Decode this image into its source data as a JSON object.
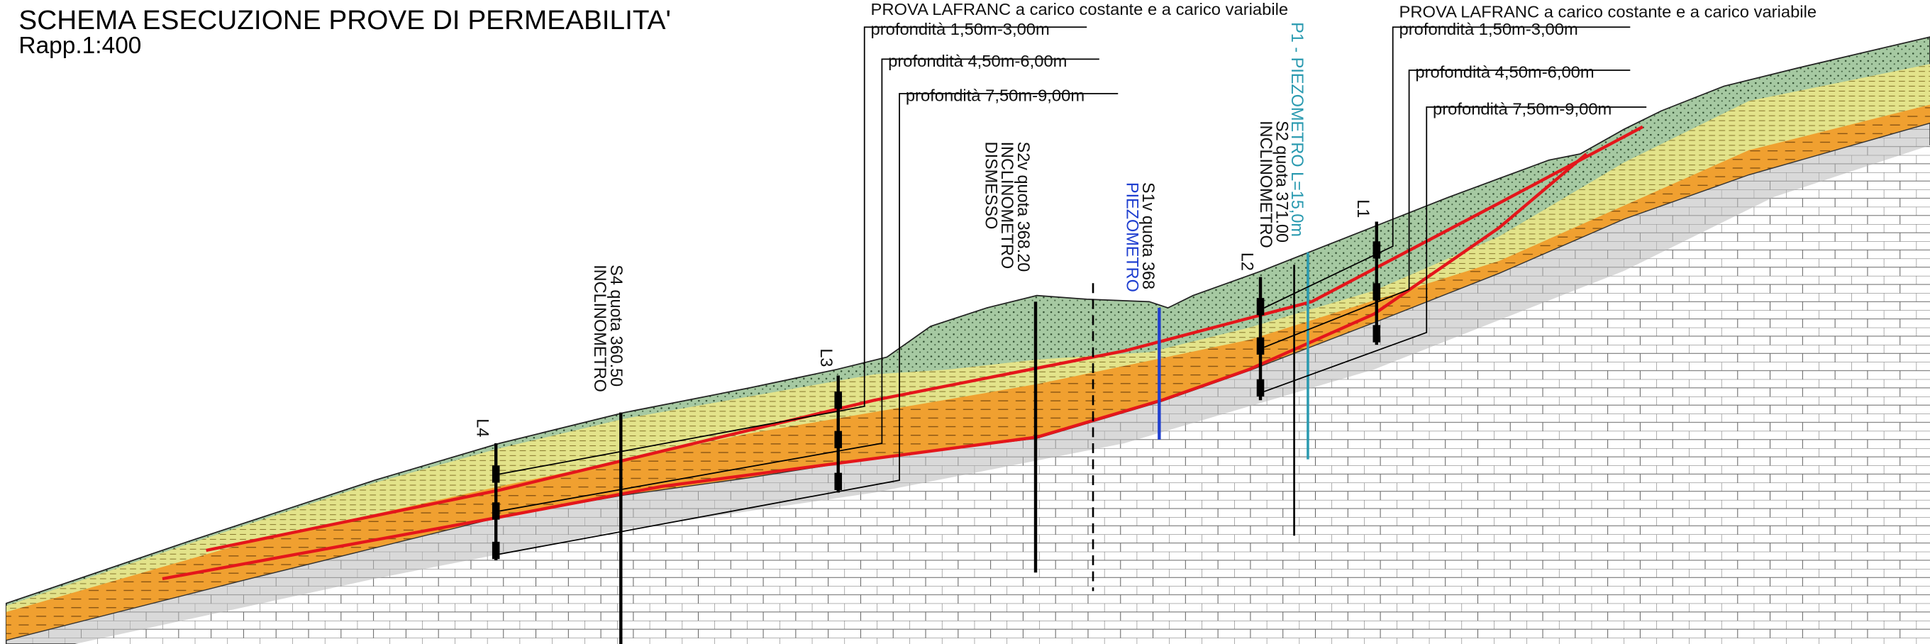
{
  "title": "SCHEMA ESECUZIONE PROVE DI PERMEABILITA'",
  "scale": "Rapp.1:400",
  "callouts": [
    {
      "heading": "PROVA LAFRANC  a carico costante e a carico variabile",
      "depths": [
        "profondità 1,50m-3,00m",
        "profondità 4,50m-6,00m",
        "profondità 7,50m-9,00m"
      ]
    },
    {
      "heading": "PROVA LAFRANC  a carico costante e a carico variabile",
      "depths": [
        "profondità 1,50m-3,00m",
        "profondità 4,50m-6,00m",
        "profondità 7,50m-9,00m"
      ]
    }
  ],
  "boreholes": [
    {
      "lines": [
        "S4 quota 360.50",
        "INCLINOMETRO"
      ]
    },
    {
      "lines": [
        "S2v quota 368.20",
        "INCLINOMETRO",
        "DISMESSO"
      ]
    },
    {
      "lines": [
        "S1v quota 368",
        "PIEZOMETRO"
      ]
    },
    {
      "lines": [
        "S2 quota 371.00",
        "INCLINOMETRO"
      ]
    },
    {
      "lines": [
        "P1 - PIEZOMETRO L=15,0m"
      ]
    }
  ],
  "tests": [
    "L1",
    "L2",
    "L3",
    "L4"
  ]
}
